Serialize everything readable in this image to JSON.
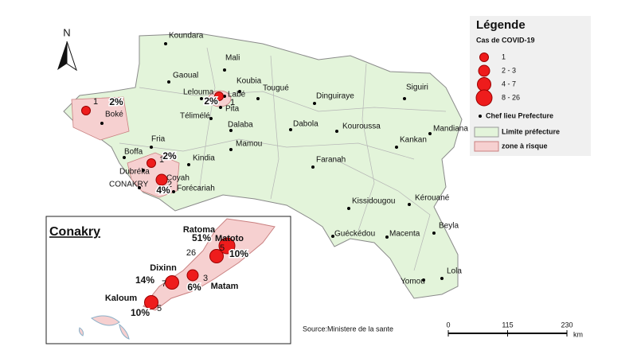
{
  "north": "N",
  "legend": {
    "title": "Légende",
    "subtitle": "Cas de COVID-19",
    "classes": [
      "1",
      "2 - 3",
      "4 - 7",
      "8 - 26"
    ],
    "items": [
      "Chef lieu Prefecture",
      "Limite préfecture",
      "zone à risque"
    ]
  },
  "prefectures": [
    "Koundara",
    "Mali",
    "Gaoual",
    "Koubia",
    "Lelouma",
    "Labé",
    "Tougué",
    "Siguiri",
    "Dinguiraye",
    "Pita",
    "Télimélé",
    "Boké",
    "Dalaba",
    "Dabola",
    "Kouroussa",
    "Mandiana",
    "Mamou",
    "Kankan",
    "Fria",
    "Boffa",
    "Kindia",
    "Faranah",
    "Dubréka",
    "Coyah",
    "CONAKRY",
    "Forécariah",
    "Kissidougou",
    "Kérouané",
    "Guéckédou",
    "Macenta",
    "Beyla",
    "Yomou",
    "Lola"
  ],
  "hotspots": [
    {
      "cases": 1,
      "share": "2%"
    },
    {
      "cases": 1,
      "share": "2%"
    },
    {
      "cases": 1,
      "share": "2%"
    },
    {
      "cases": 2,
      "share": "4%"
    }
  ],
  "inset": {
    "title": "Conakry",
    "communes": [
      {
        "name": "Ratoma",
        "cases": 26,
        "share": "51%"
      },
      {
        "name": "Matoto",
        "cases": 5,
        "share": "10%"
      },
      {
        "name": "Dixinn",
        "cases": 7,
        "share": "14%"
      },
      {
        "name": "Matam",
        "cases": 3,
        "share": "6%"
      },
      {
        "name": "Kaloum",
        "cases": 5,
        "share": "10%"
      }
    ]
  },
  "source": "Source:Ministere de la sante",
  "scale": {
    "ticks": [
      0,
      115,
      230
    ],
    "unit": "km"
  }
}
